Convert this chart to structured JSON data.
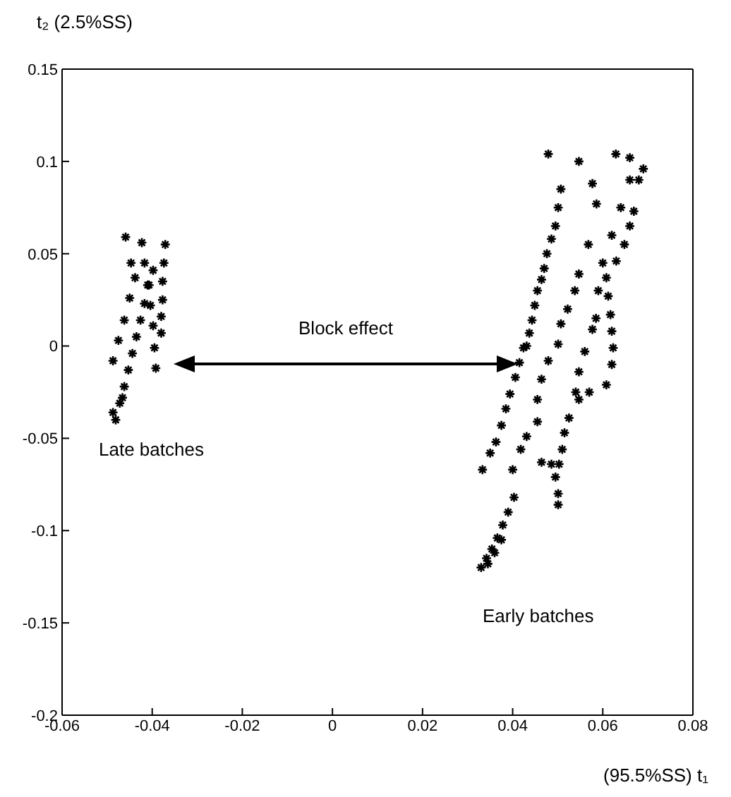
{
  "chart_data": {
    "type": "scatter",
    "xlabel": "(95.5%SS)   t₁",
    "ylabel": "t₂   (2.5%SS)",
    "xlim": [
      -0.06,
      0.08
    ],
    "xticks": [
      -0.06,
      -0.04,
      -0.02,
      0,
      0.02,
      0.04,
      0.06,
      0.08
    ],
    "ylim": [
      -0.2,
      0.15
    ],
    "yticks": [
      -0.2,
      -0.15,
      -0.1,
      -0.05,
      0,
      0.05,
      0.1,
      0.15
    ],
    "marker": "cross",
    "annotations": [
      "Block effect",
      "Late batches",
      "Early batches"
    ],
    "series": [
      {
        "color": "#000000",
        "x": [
          -0.0481,
          -0.0472,
          -0.0462,
          -0.0453,
          -0.0444,
          -0.0435,
          -0.0426,
          -0.0417,
          -0.0407,
          -0.0398,
          -0.0487,
          -0.0475,
          -0.0462,
          -0.045,
          -0.0438,
          -0.0423,
          -0.0417,
          -0.041,
          -0.0404,
          -0.0398,
          -0.0395,
          -0.0392,
          -0.0371,
          -0.0374,
          -0.0377,
          -0.0377,
          -0.038,
          -0.038,
          -0.0459,
          -0.0447,
          -0.0487,
          -0.0466
        ],
        "values": [
          -0.04,
          -0.031,
          -0.022,
          -0.013,
          -0.004,
          0.005,
          0.014,
          0.023,
          0.033,
          0.041,
          -0.008,
          0.003,
          0.014,
          0.026,
          0.037,
          0.056,
          0.045,
          0.033,
          0.022,
          0.011,
          -0.001,
          -0.012,
          0.055,
          0.045,
          0.035,
          0.025,
          0.016,
          0.007,
          0.059,
          0.045,
          -0.036,
          -0.028
        ]
      },
      {
        "color": "#000000",
        "x": [
          0.0507,
          0.0501,
          0.0495,
          0.0486,
          0.0476,
          0.047,
          0.0464,
          0.0455,
          0.0449,
          0.0443,
          0.0437,
          0.0431,
          0.0424,
          0.0415,
          0.0406,
          0.0394,
          0.0385,
          0.0375,
          0.0363,
          0.035,
          0.0333,
          0.0403,
          0.039,
          0.0378,
          0.0366,
          0.0354,
          0.0342,
          0.033,
          0.0345,
          0.036,
          0.0375,
          0.0479,
          0.0547,
          0.0629,
          0.066,
          0.0577,
          0.0586,
          0.0568,
          0.0547,
          0.0538,
          0.0522,
          0.0507,
          0.0501,
          0.0479,
          0.0464,
          0.0455,
          0.0455,
          0.0431,
          0.0418,
          0.04,
          0.069,
          0.068,
          0.0669,
          0.066,
          0.0648,
          0.063,
          0.0608,
          0.0612,
          0.0617,
          0.062,
          0.0623,
          0.062,
          0.0608,
          0.057,
          0.0547,
          0.0525,
          0.0515,
          0.051,
          0.0503,
          0.0495,
          0.0501,
          0.0501,
          0.066,
          0.064,
          0.062,
          0.06,
          0.059,
          0.0585,
          0.0577,
          0.056,
          0.0547,
          0.054,
          0.0464,
          0.0486
        ],
        "values": [
          0.085,
          0.075,
          0.065,
          0.058,
          0.05,
          0.042,
          0.036,
          0.03,
          0.022,
          0.014,
          0.007,
          0.0,
          -0.001,
          -0.009,
          -0.017,
          -0.026,
          -0.034,
          -0.043,
          -0.052,
          -0.058,
          -0.067,
          -0.082,
          -0.09,
          -0.097,
          -0.104,
          -0.11,
          -0.115,
          -0.12,
          -0.118,
          -0.112,
          -0.105,
          0.104,
          0.1,
          0.104,
          0.102,
          0.088,
          0.077,
          0.055,
          0.039,
          0.03,
          0.02,
          0.012,
          0.001,
          -0.008,
          -0.018,
          -0.029,
          -0.041,
          -0.049,
          -0.056,
          -0.067,
          0.096,
          0.09,
          0.073,
          0.065,
          0.055,
          0.046,
          0.037,
          0.027,
          0.017,
          0.008,
          -0.001,
          -0.01,
          -0.021,
          -0.025,
          -0.029,
          -0.039,
          -0.047,
          -0.056,
          -0.064,
          -0.071,
          -0.08,
          -0.086,
          0.09,
          0.075,
          0.06,
          0.045,
          0.03,
          0.015,
          0.009,
          -0.003,
          -0.014,
          -0.025,
          -0.063,
          -0.064
        ]
      }
    ]
  }
}
